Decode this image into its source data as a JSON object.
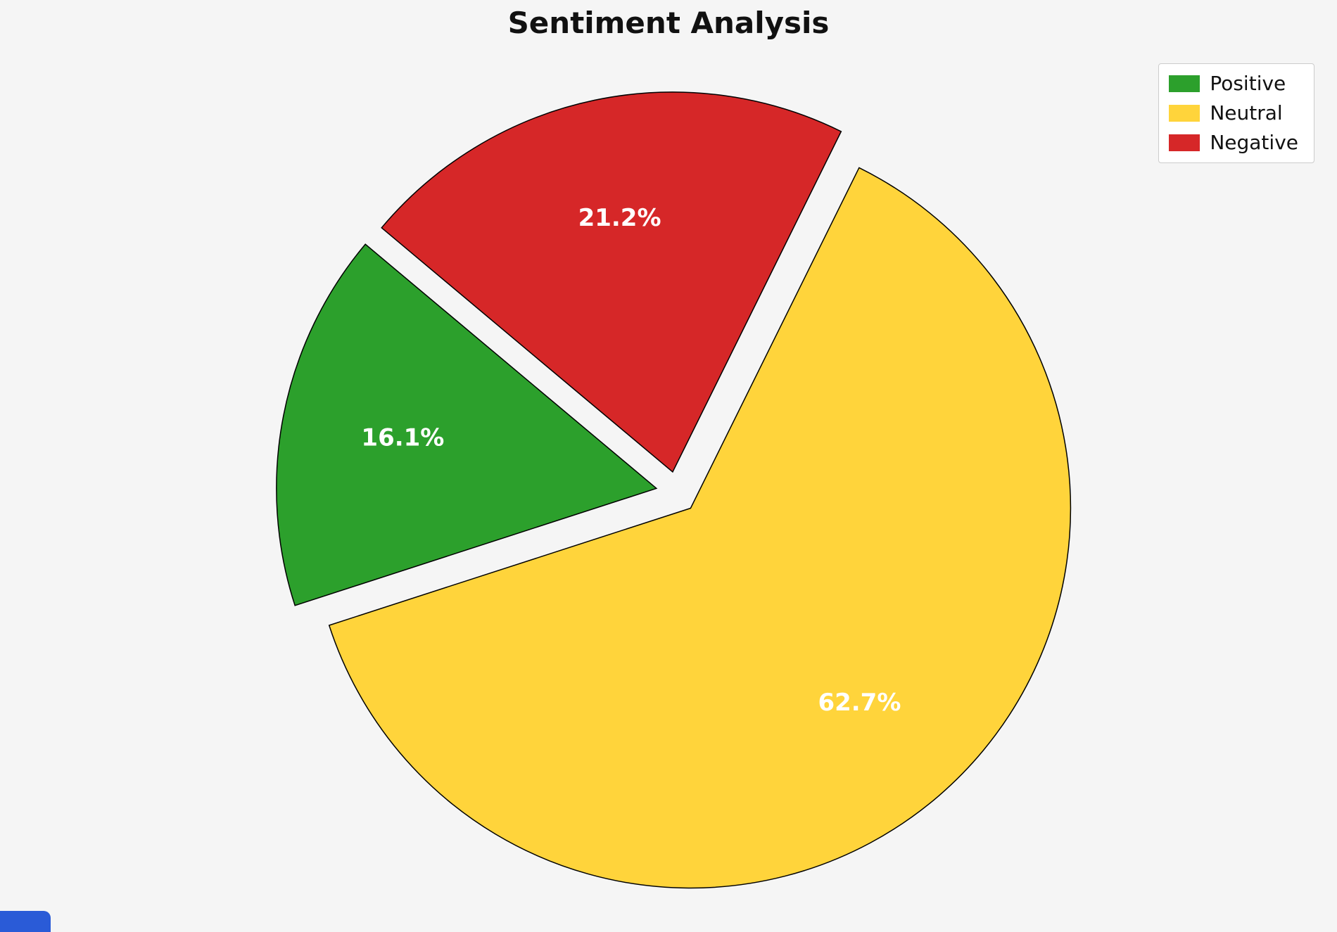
{
  "page": {
    "background": "#f5f5f5"
  },
  "chart_data": {
    "type": "pie",
    "title": "Sentiment Analysis",
    "slices": [
      {
        "label": "Positive",
        "value": 16.1,
        "pct_label": "16.1%",
        "color": "#2ca02c"
      },
      {
        "label": "Neutral",
        "value": 62.7,
        "pct_label": "62.7%",
        "color": "#ffd43b"
      },
      {
        "label": "Negative",
        "value": 21.2,
        "pct_label": "21.2%",
        "color": "#d62728"
      }
    ],
    "legend": {
      "position": "upper right",
      "entries": [
        "Positive",
        "Neutral",
        "Negative"
      ]
    },
    "start_angle": 140,
    "counterclockwise": true,
    "explode": 0.055,
    "edge_color": "#000000",
    "pct_text_color": "#ffffff"
  },
  "misc": {
    "cropped_blue_element_color": "#2a5bd7"
  }
}
